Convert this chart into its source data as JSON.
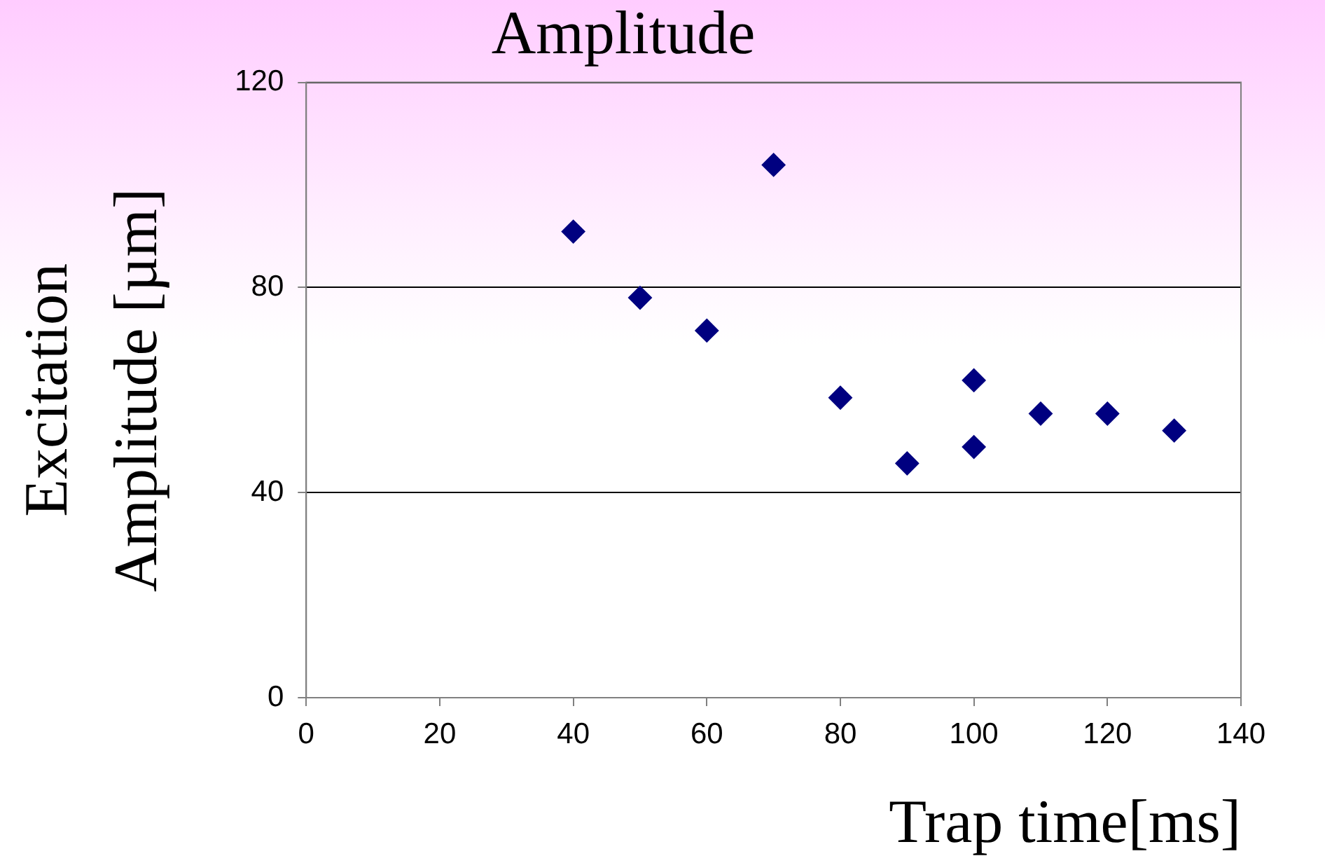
{
  "chart_data": {
    "type": "scatter",
    "title": "Amplitude",
    "xlabel": "Trap time[ms]",
    "ylabel": "Excitation\nAmplitude [µm]",
    "x": [
      40,
      50,
      60,
      70,
      80,
      90,
      100,
      100,
      110,
      120,
      130
    ],
    "series": [
      {
        "color": "#000080",
        "values": [
          90.9,
          78.0,
          71.6,
          103.9,
          58.5,
          45.7,
          61.9,
          48.9,
          55.4,
          55.4,
          52.1
        ]
      }
    ],
    "xlim": [
      0,
      140
    ],
    "xticks": [
      0,
      20,
      40,
      60,
      80,
      100,
      120,
      140
    ],
    "ylim": [
      0,
      120
    ],
    "yticks": [
      0,
      40,
      80,
      120
    ],
    "grid": "y",
    "marker": "diamond",
    "legend": false
  }
}
